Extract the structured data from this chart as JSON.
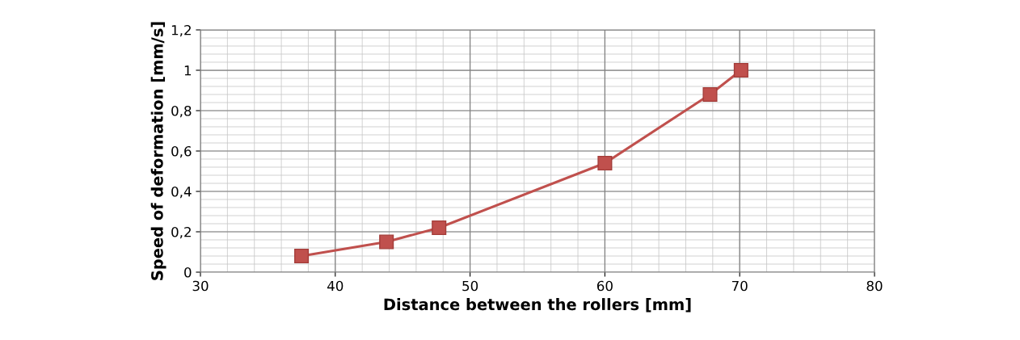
{
  "chart_data": {
    "type": "line",
    "xlabel": "Distance between the rollers [mm]",
    "ylabel": "Speed of deformation [mm/s]",
    "x": [
      37.5,
      43.8,
      47.7,
      60.0,
      67.8,
      70.1
    ],
    "series": [
      {
        "color": "#c0504d",
        "values": [
          0.08,
          0.15,
          0.22,
          0.54,
          0.88,
          1.0
        ]
      }
    ],
    "xlim": [
      30,
      80
    ],
    "xticks": [
      30,
      40,
      50,
      60,
      70,
      80
    ],
    "ylim": [
      0,
      1.2
    ],
    "yticks": [
      0,
      {
        "value": 0.2,
        "label": "0,2"
      },
      {
        "value": 0.4,
        "label": "0,4"
      },
      {
        "value": 0.6,
        "label": "0,6"
      },
      {
        "value": 0.8,
        "label": "0,8"
      },
      1,
      {
        "value": 1.2,
        "label": "1,2"
      }
    ],
    "grid": true,
    "marker": "square",
    "line_style": "solid"
  }
}
